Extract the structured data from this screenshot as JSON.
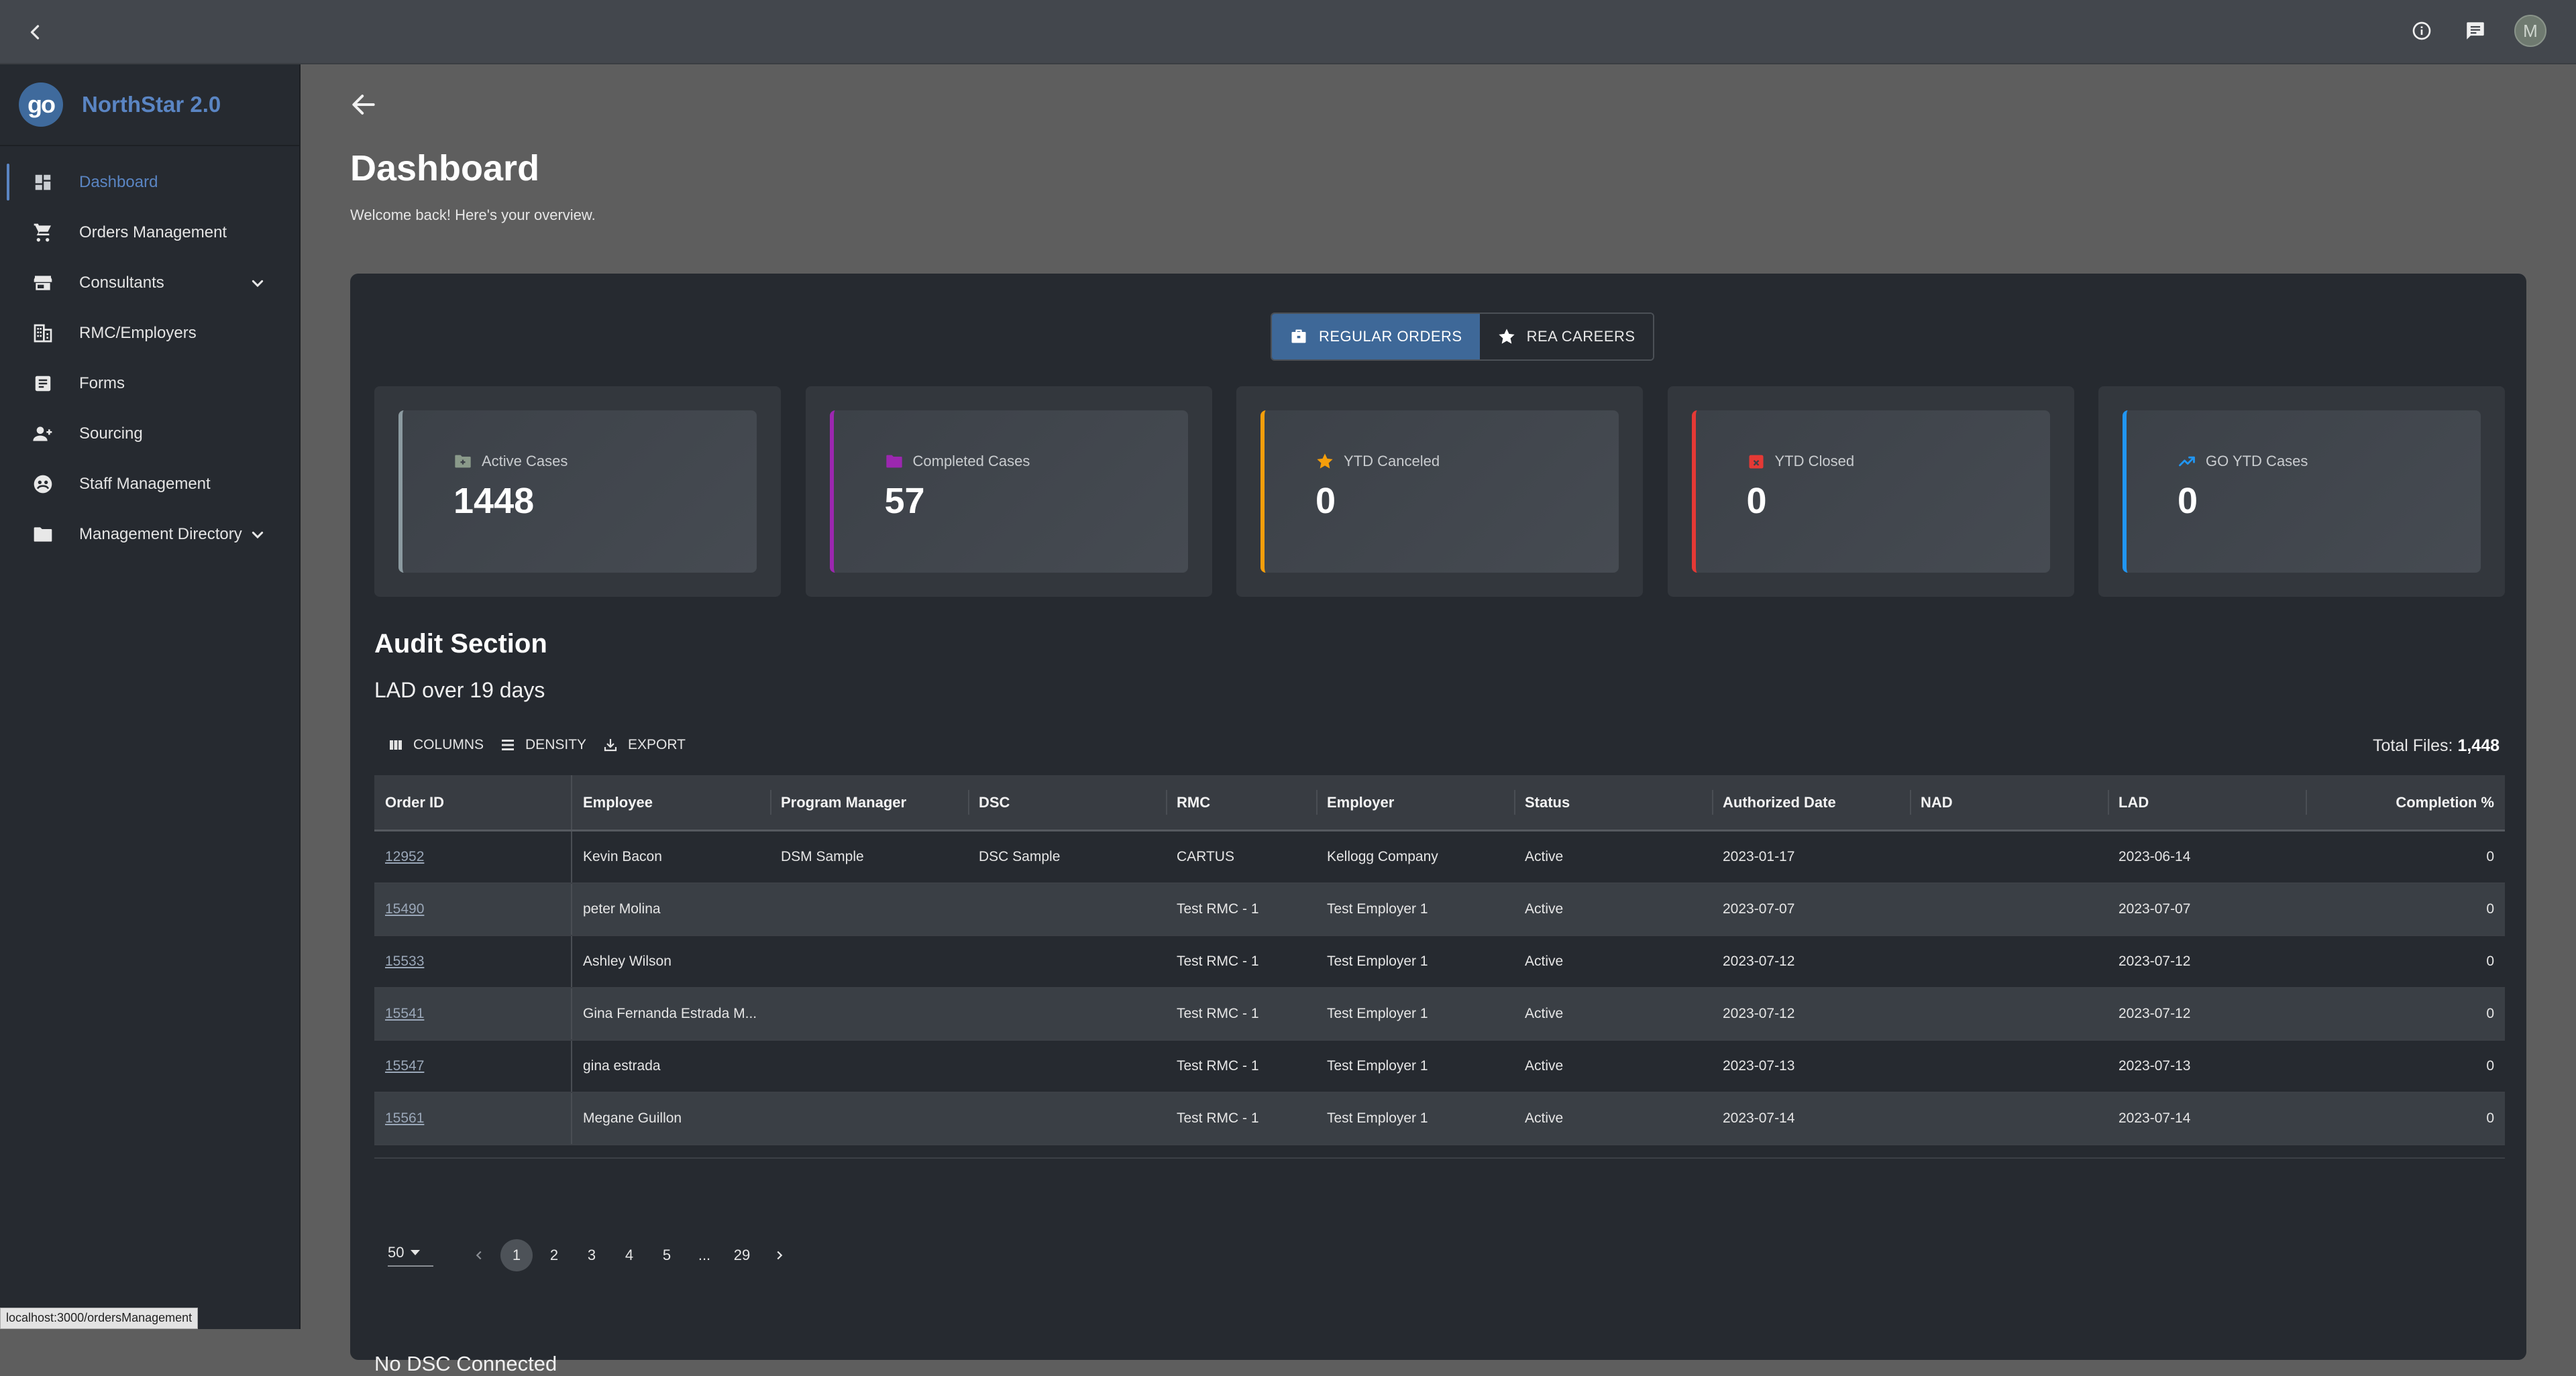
{
  "topbar": {
    "icons": [
      "chevron-left-icon",
      "info-icon",
      "feedback-icon"
    ],
    "avatar_initial": "M"
  },
  "sidebar": {
    "brand_logo": "go",
    "brand_name": "NorthStar 2.0",
    "items": [
      {
        "label": "Dashboard",
        "icon": "dashboard-icon",
        "active": true
      },
      {
        "label": "Orders Management",
        "icon": "cart-icon"
      },
      {
        "label": "Consultants",
        "icon": "store-icon",
        "expandable": true
      },
      {
        "label": "RMC/Employers",
        "icon": "building-icon"
      },
      {
        "label": "Forms",
        "icon": "form-icon"
      },
      {
        "label": "Sourcing",
        "icon": "person-add-icon"
      },
      {
        "label": "Staff Management",
        "icon": "staff-icon"
      },
      {
        "label": "Management Directory",
        "icon": "folder-icon",
        "expandable": true
      }
    ]
  },
  "status_url": "localhost:3000/ordersManagement",
  "main": {
    "title": "Dashboard",
    "subtitle": "Welcome back! Here's your overview.",
    "toggle": [
      {
        "label": "REGULAR ORDERS",
        "icon": "briefcase-icon",
        "selected": true
      },
      {
        "label": "REA CAREERS",
        "icon": "star-icon",
        "selected": false
      }
    ],
    "stats": [
      {
        "label": "Active Cases",
        "value": "1448",
        "color": "#8b9aa0",
        "icon": "folder-add-icon",
        "icon_color": "#8a9a8a"
      },
      {
        "label": "Completed Cases",
        "value": "57",
        "color": "#9c27b0",
        "icon": "folder-check-icon",
        "icon_color": "#9c27b0"
      },
      {
        "label": "YTD Canceled",
        "value": "0",
        "color": "#f59e0b",
        "icon": "star-icon",
        "icon_color": "#f59e0b"
      },
      {
        "label": "YTD Closed",
        "value": "0",
        "color": "#e53935",
        "icon": "calendar-x-icon",
        "icon_color": "#e53935"
      },
      {
        "label": "GO YTD Cases",
        "value": "0",
        "color": "#2196f3",
        "icon": "trending-up-icon",
        "icon_color": "#2196f3"
      }
    ],
    "audit_title": "Audit Section",
    "audit_subtitle": "LAD over 19 days",
    "toolbar": {
      "columns": "COLUMNS",
      "density": "DENSITY",
      "export": "EXPORT"
    },
    "total_files_label": "Total Files:",
    "total_files_value": "1,448",
    "columns": [
      "Order ID",
      "Employee",
      "Program Manager",
      "DSC",
      "RMC",
      "Employer",
      "Status",
      "Authorized Date",
      "NAD",
      "LAD",
      "Completion %"
    ],
    "rows": [
      [
        "12952",
        "Kevin Bacon",
        "DSM Sample",
        "DSC Sample",
        "CARTUS",
        "Kellogg Company",
        "Active",
        "2023-01-17",
        "",
        "2023-06-14",
        "0"
      ],
      [
        "15490",
        "peter Molina",
        "",
        "",
        "Test RMC - 1",
        "Test Employer 1",
        "Active",
        "2023-07-07",
        "",
        "2023-07-07",
        "0"
      ],
      [
        "15533",
        "Ashley Wilson",
        "",
        "",
        "Test RMC - 1",
        "Test Employer 1",
        "Active",
        "2023-07-12",
        "",
        "2023-07-12",
        "0"
      ],
      [
        "15541",
        "Gina Fernanda Estrada M...",
        "",
        "",
        "Test RMC - 1",
        "Test Employer 1",
        "Active",
        "2023-07-12",
        "",
        "2023-07-12",
        "0"
      ],
      [
        "15547",
        "gina estrada",
        "",
        "",
        "Test RMC - 1",
        "Test Employer 1",
        "Active",
        "2023-07-13",
        "",
        "2023-07-13",
        "0"
      ],
      [
        "15561",
        "Megane Guillon",
        "",
        "",
        "Test RMC - 1",
        "Test Employer 1",
        "Active",
        "2023-07-14",
        "",
        "2023-07-14",
        "0"
      ]
    ],
    "pagination": {
      "page_size": "50",
      "pages": [
        "1",
        "2",
        "3",
        "4",
        "5",
        "...",
        "29"
      ],
      "current": "1"
    },
    "no_dsc": "No DSC Connected"
  }
}
